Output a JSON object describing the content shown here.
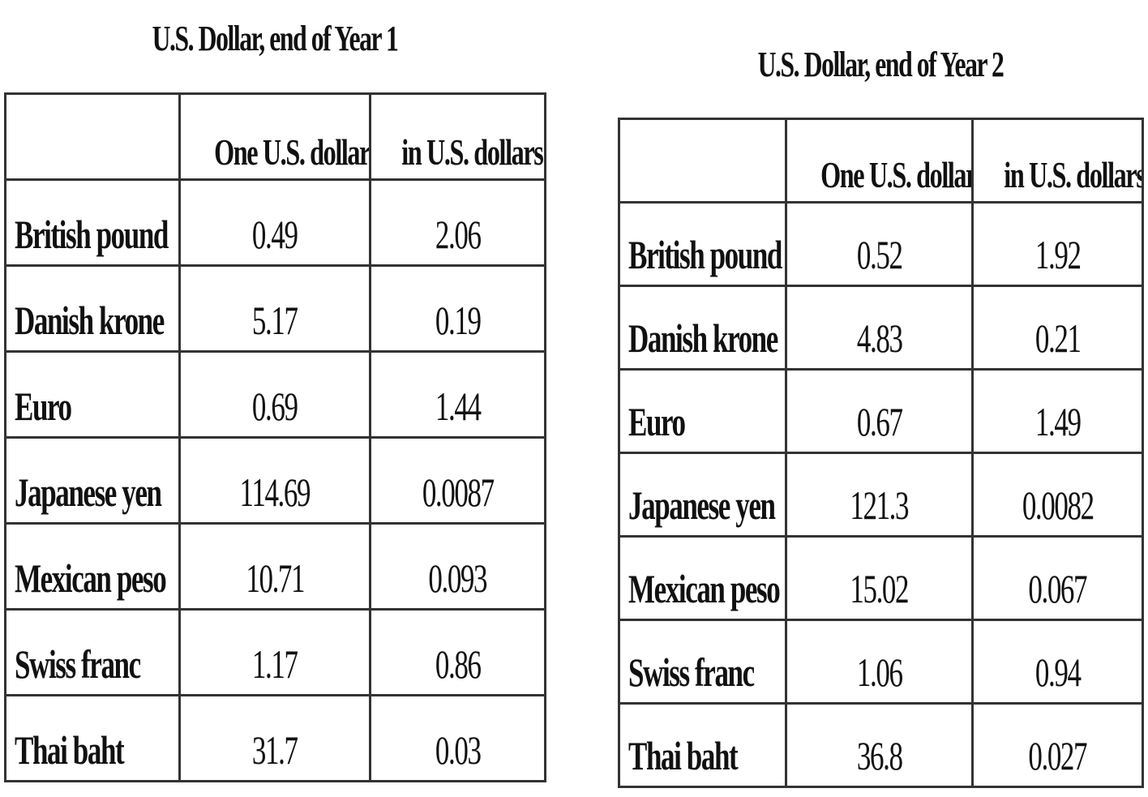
{
  "tables": [
    {
      "title": "U.S. Dollar, end of Year 1",
      "headers": [
        "",
        "One U.S. dollar",
        "in U.S. dollars"
      ],
      "rows": [
        [
          "British pound",
          "0.49",
          "2.06"
        ],
        [
          "Danish krone",
          "5.17",
          "0.19"
        ],
        [
          "Euro",
          "0.69",
          "1.44"
        ],
        [
          "Japanese yen",
          "114.69",
          "0.0087"
        ],
        [
          "Mexican peso",
          "10.71",
          "0.093"
        ],
        [
          "Swiss franc",
          "1.17",
          "0.86"
        ],
        [
          "Thai baht",
          "31.7",
          "0.03"
        ]
      ]
    },
    {
      "title": "U.S. Dollar, end of Year 2",
      "headers": [
        "",
        "One U.S. dollar",
        "in U.S. dollars"
      ],
      "rows": [
        [
          "British pound",
          "0.52",
          "1.92"
        ],
        [
          "Danish krone",
          "4.83",
          "0.21"
        ],
        [
          "Euro",
          "0.67",
          "1.49"
        ],
        [
          "Japanese yen",
          "121.3",
          "0.0082"
        ],
        [
          "Mexican peso",
          "15.02",
          "0.067"
        ],
        [
          "Swiss franc",
          "1.06",
          "0.94"
        ],
        [
          "Thai baht",
          "36.8",
          "0.027"
        ]
      ]
    }
  ]
}
